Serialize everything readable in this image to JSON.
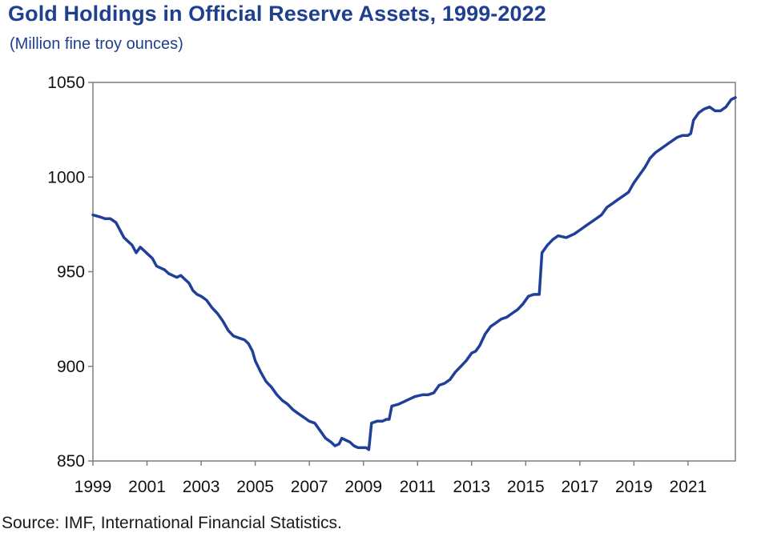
{
  "chart_data": {
    "type": "line",
    "title": "Gold Holdings in Official Reserve Assets, 1999-2022",
    "subtitle": "(Million fine troy ounces)",
    "source": "Source: IMF, International Financial Statistics.",
    "xlim": [
      1999,
      2022.75
    ],
    "ylim": [
      850,
      1050
    ],
    "x_ticks": [
      1999,
      2001,
      2003,
      2005,
      2007,
      2009,
      2011,
      2013,
      2015,
      2017,
      2019,
      2021
    ],
    "x_tick_labels": [
      "1999",
      "2001",
      "2003",
      "2005",
      "2007",
      "2009",
      "2011",
      "2013",
      "2015",
      "2017",
      "2019",
      "2021"
    ],
    "y_ticks": [
      850,
      900,
      950,
      1000,
      1050
    ],
    "y_tick_labels": [
      "850",
      "900",
      "950",
      "1000",
      "1050"
    ],
    "grid": false,
    "line_color": "#1f3f99",
    "series": [
      {
        "name": "",
        "x": [
          1999.0,
          1999.25,
          1999.45,
          1999.65,
          1999.85,
          2000.0,
          2000.15,
          2000.3,
          2000.45,
          2000.6,
          2000.75,
          2000.9,
          2001.05,
          2001.2,
          2001.35,
          2001.5,
          2001.65,
          2001.8,
          2001.95,
          2002.1,
          2002.25,
          2002.4,
          2002.55,
          2002.7,
          2002.85,
          2003.0,
          2003.2,
          2003.4,
          2003.6,
          2003.8,
          2004.0,
          2004.2,
          2004.4,
          2004.6,
          2004.75,
          2004.9,
          2005.0,
          2005.2,
          2005.4,
          2005.6,
          2005.8,
          2006.0,
          2006.2,
          2006.4,
          2006.6,
          2006.8,
          2007.0,
          2007.2,
          2007.4,
          2007.6,
          2007.8,
          2007.95,
          2008.1,
          2008.2,
          2008.35,
          2008.5,
          2008.65,
          2008.8,
          2008.95,
          2009.1,
          2009.2,
          2009.3,
          2009.5,
          2009.7,
          2009.85,
          2009.95,
          2010.05,
          2010.3,
          2010.6,
          2010.9,
          2011.2,
          2011.4,
          2011.6,
          2011.8,
          2012.0,
          2012.2,
          2012.4,
          2012.6,
          2012.8,
          2013.0,
          2013.15,
          2013.3,
          2013.5,
          2013.7,
          2013.9,
          2014.1,
          2014.3,
          2014.5,
          2014.7,
          2014.9,
          2015.1,
          2015.3,
          2015.42,
          2015.5,
          2015.6,
          2015.8,
          2016.0,
          2016.2,
          2016.5,
          2016.8,
          2017.0,
          2017.2,
          2017.4,
          2017.6,
          2017.8,
          2018.0,
          2018.2,
          2018.4,
          2018.6,
          2018.8,
          2019.0,
          2019.2,
          2019.4,
          2019.6,
          2019.8,
          2020.0,
          2020.2,
          2020.4,
          2020.6,
          2020.8,
          2021.0,
          2021.1,
          2021.2,
          2021.4,
          2021.6,
          2021.8,
          2022.0,
          2022.2,
          2022.4,
          2022.6,
          2022.75
        ],
        "values": [
          980,
          979,
          978,
          978,
          976,
          972,
          968,
          966,
          964,
          960,
          963,
          961,
          959,
          957,
          953,
          952,
          951,
          949,
          948,
          947,
          948,
          946,
          944,
          940,
          938,
          937,
          935,
          931,
          928,
          924,
          919,
          916,
          915,
          914,
          912,
          908,
          903,
          897,
          892,
          889,
          885,
          882,
          880,
          877,
          875,
          873,
          871,
          870,
          866,
          862,
          860,
          858,
          859,
          862,
          861,
          860,
          858,
          857,
          857,
          857,
          856,
          870,
          871,
          871,
          872,
          872,
          879,
          880,
          882,
          884,
          885,
          885,
          886,
          890,
          891,
          893,
          897,
          900,
          903,
          907,
          908,
          911,
          917,
          921,
          923,
          925,
          926,
          928,
          930,
          933,
          937,
          938,
          938,
          938,
          960,
          964,
          967,
          969,
          968,
          970,
          972,
          974,
          976,
          978,
          980,
          984,
          986,
          988,
          990,
          992,
          997,
          1001,
          1005,
          1010,
          1013,
          1015,
          1017,
          1019,
          1021,
          1022,
          1022,
          1023,
          1030,
          1034,
          1036,
          1037,
          1035,
          1035,
          1037,
          1041,
          1042
        ]
      }
    ]
  }
}
